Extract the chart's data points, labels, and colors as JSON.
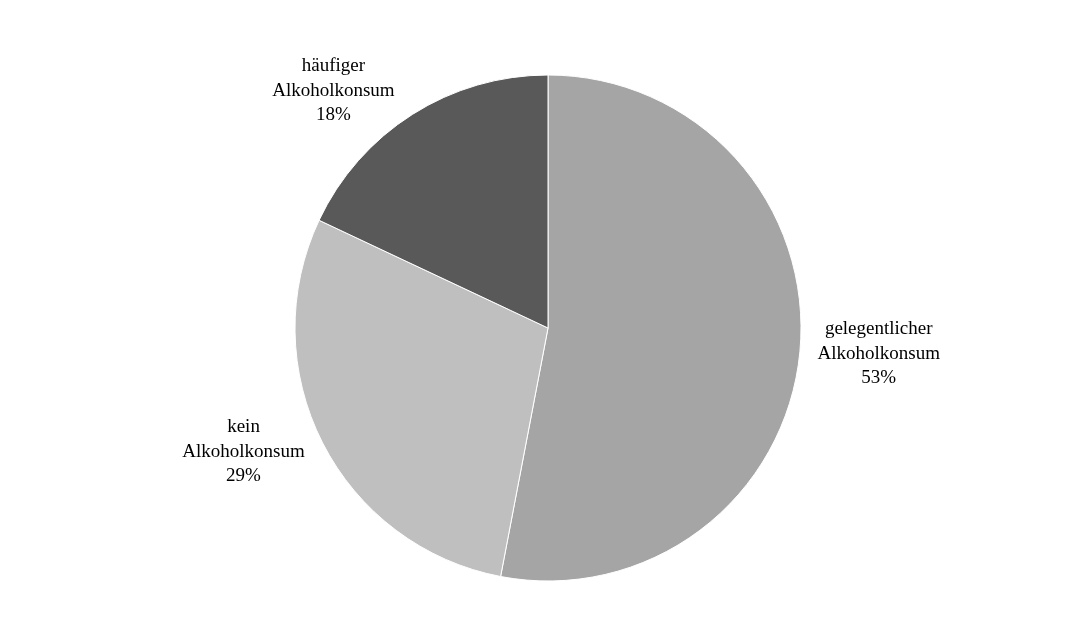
{
  "chart_data": {
    "type": "pie",
    "categories": [
      "gelegentlicher Alkoholkonsum",
      "kein Alkoholkonsum",
      "häufiger Alkoholkonsum"
    ],
    "values": [
      53,
      29,
      18
    ],
    "value_labels": [
      "53%",
      "29%",
      "18%"
    ],
    "colors": [
      "#a5a5a5",
      "#bfbfbf",
      "#595959"
    ],
    "legend": false
  }
}
